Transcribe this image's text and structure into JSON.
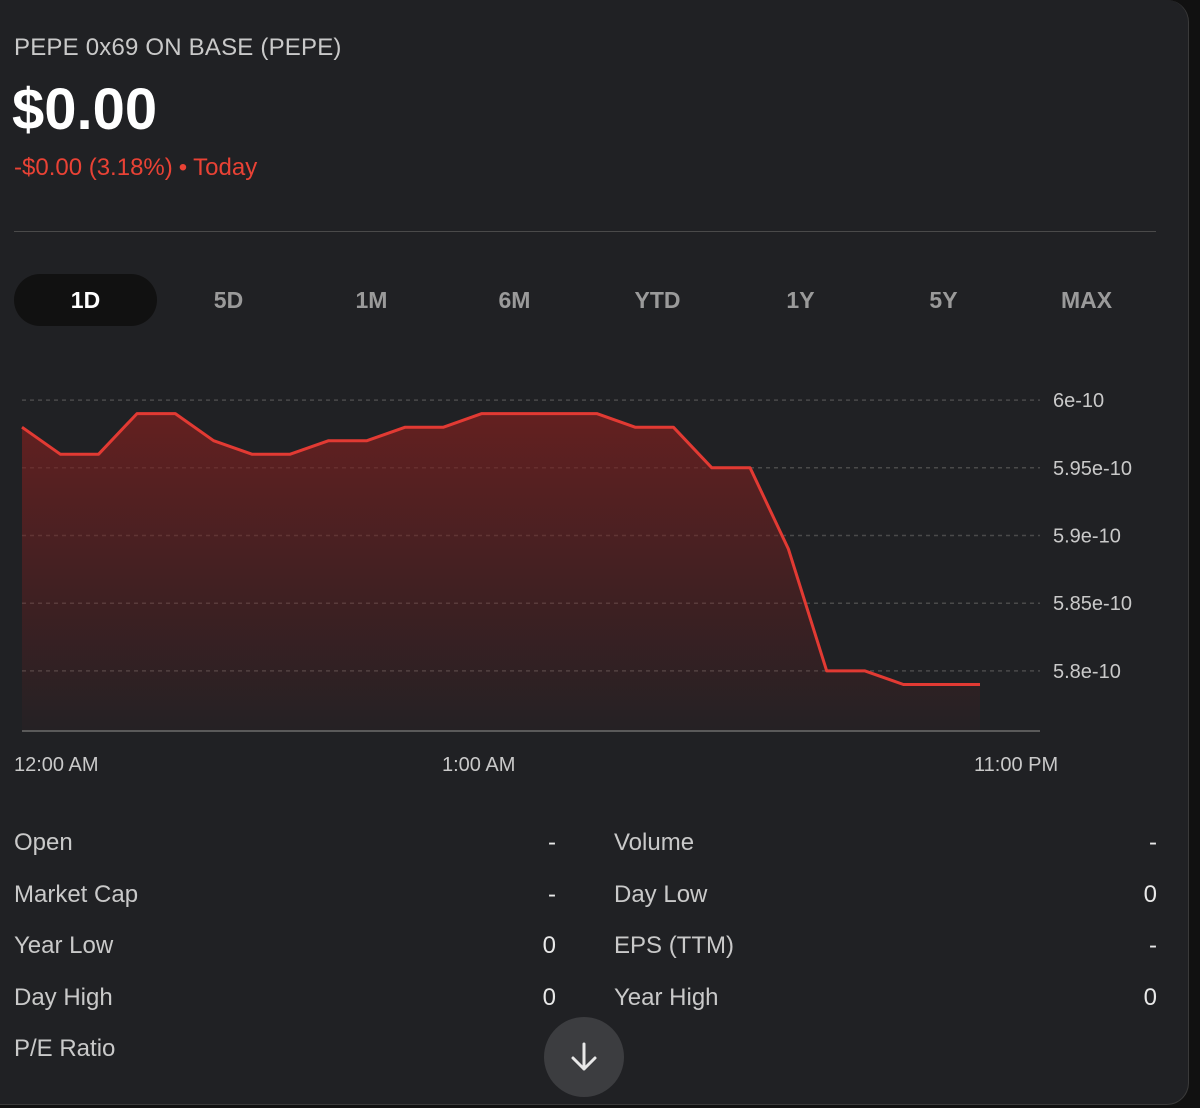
{
  "header": {
    "asset_name": "PEPE 0x69 ON BASE (PEPE)",
    "price": "$0.00",
    "change": "-$0.00 (3.18%)",
    "change_separator": "•",
    "period": "Today",
    "negative_color": "#e94235"
  },
  "range_tabs": [
    {
      "label": "1D",
      "active": true
    },
    {
      "label": "5D",
      "active": false
    },
    {
      "label": "1M",
      "active": false
    },
    {
      "label": "6M",
      "active": false
    },
    {
      "label": "YTD",
      "active": false
    },
    {
      "label": "1Y",
      "active": false
    },
    {
      "label": "5Y",
      "active": false
    },
    {
      "label": "MAX",
      "active": false
    }
  ],
  "chart_data": {
    "type": "area",
    "x_tick_labels": [
      "12:00 AM",
      "1:00 AM",
      "11:00 PM"
    ],
    "y_tick_labels": [
      "6e-10",
      "5.95e-10",
      "5.9e-10",
      "5.85e-10",
      "5.8e-10"
    ],
    "y_ticks": [
      6e-10,
      5.95e-10,
      5.9e-10,
      5.85e-10,
      5.8e-10
    ],
    "ylim": [
      5.78e-10,
      6.02e-10
    ],
    "grid": true,
    "line_color": "#e23a33",
    "fill_color": "#7a1f1f",
    "series": [
      {
        "values": [
          5.98e-10,
          5.96e-10,
          5.96e-10,
          5.99e-10,
          5.99e-10,
          5.97e-10,
          5.96e-10,
          5.96e-10,
          5.97e-10,
          5.97e-10,
          5.98e-10,
          5.98e-10,
          5.99e-10,
          5.99e-10,
          5.99e-10,
          5.99e-10,
          5.98e-10,
          5.98e-10,
          5.95e-10,
          5.95e-10,
          5.89e-10,
          5.8e-10,
          5.8e-10,
          5.79e-10,
          5.79e-10,
          5.79e-10
        ]
      }
    ]
  },
  "stats": {
    "open_label": "Open",
    "open_value": "-",
    "volume_label": "Volume",
    "volume_value": "-",
    "market_cap_label": "Market Cap",
    "market_cap_value": "-",
    "day_low_label": "Day Low",
    "day_low_value": "0",
    "year_low_label": "Year Low",
    "year_low_value": "0",
    "eps_label": "EPS (TTM)",
    "eps_value": "-",
    "day_high_label": "Day High",
    "day_high_value": "0",
    "year_high_label": "Year High",
    "year_high_value": "0",
    "pe_label": "P/E Ratio"
  },
  "scroll_button": {
    "icon": "arrow-down-icon"
  }
}
